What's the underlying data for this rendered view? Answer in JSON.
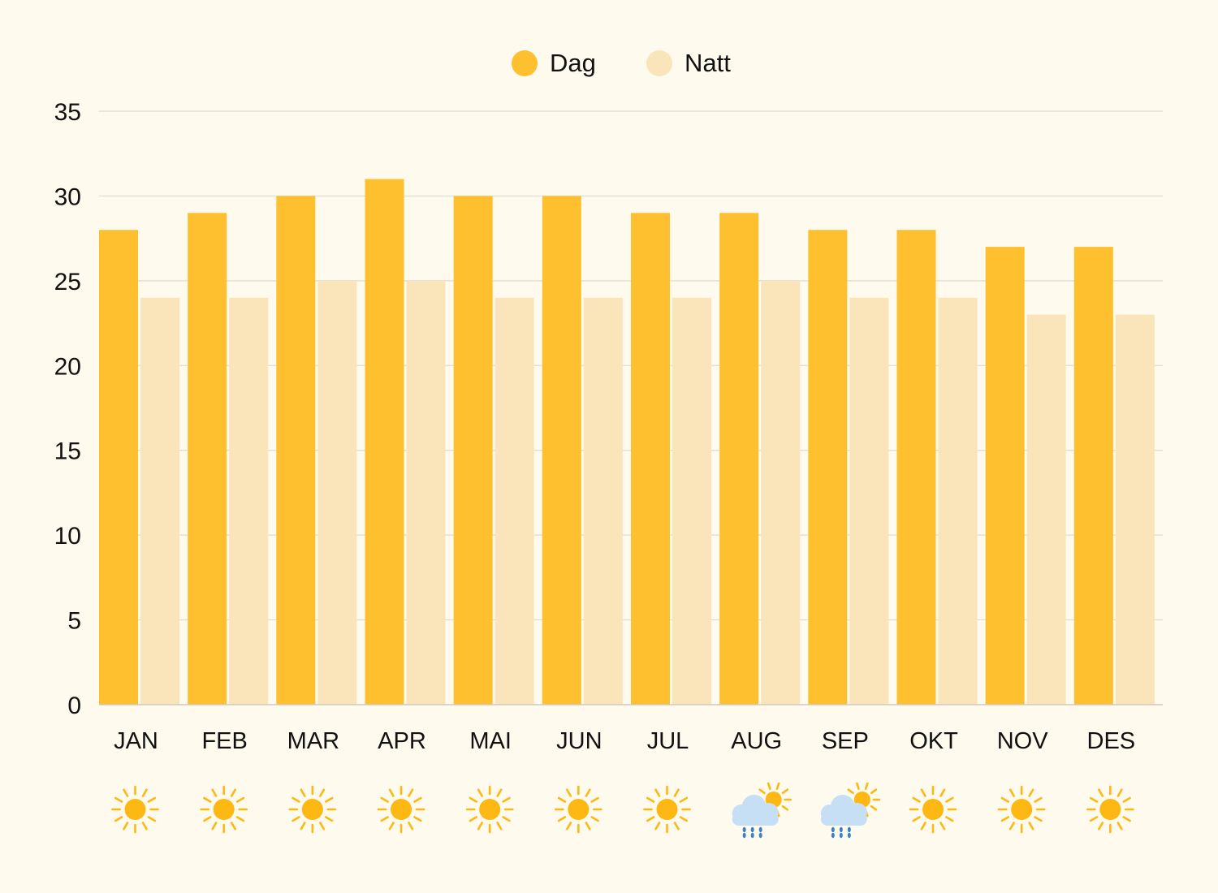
{
  "colors": {
    "background": "#fffaee",
    "dag": "#fec02f",
    "natt": "#f9e5b9",
    "grid": "#dedbd2",
    "axis": "#cfcabe",
    "sun": "#fdb813",
    "cloud": "#c7dff5",
    "rain": "#3d7fc4"
  },
  "chart_data": {
    "type": "bar",
    "categories": [
      "JAN",
      "FEB",
      "MAR",
      "APR",
      "MAI",
      "JUN",
      "JUL",
      "AUG",
      "SEP",
      "OKT",
      "NOV",
      "DES"
    ],
    "series": [
      {
        "name": "Dag",
        "color": "#fec02f",
        "values": [
          28,
          29,
          30,
          31,
          30,
          30,
          29,
          29,
          28,
          28,
          27,
          27
        ]
      },
      {
        "name": "Natt",
        "color": "#f9e5b9",
        "values": [
          24,
          24,
          25,
          25,
          24,
          24,
          24,
          25,
          24,
          24,
          23,
          23
        ]
      }
    ],
    "ylim": [
      0,
      35
    ],
    "yticks": [
      0,
      5,
      10,
      15,
      20,
      25,
      30,
      35
    ],
    "grid": true,
    "legend_position": "top-center",
    "weather_icons": [
      "sun-icon",
      "sun-icon",
      "sun-icon",
      "sun-icon",
      "sun-icon",
      "sun-icon",
      "sun-icon",
      "rain-cloud-sun-icon",
      "rain-cloud-sun-icon",
      "sun-icon",
      "sun-icon",
      "sun-icon"
    ]
  }
}
